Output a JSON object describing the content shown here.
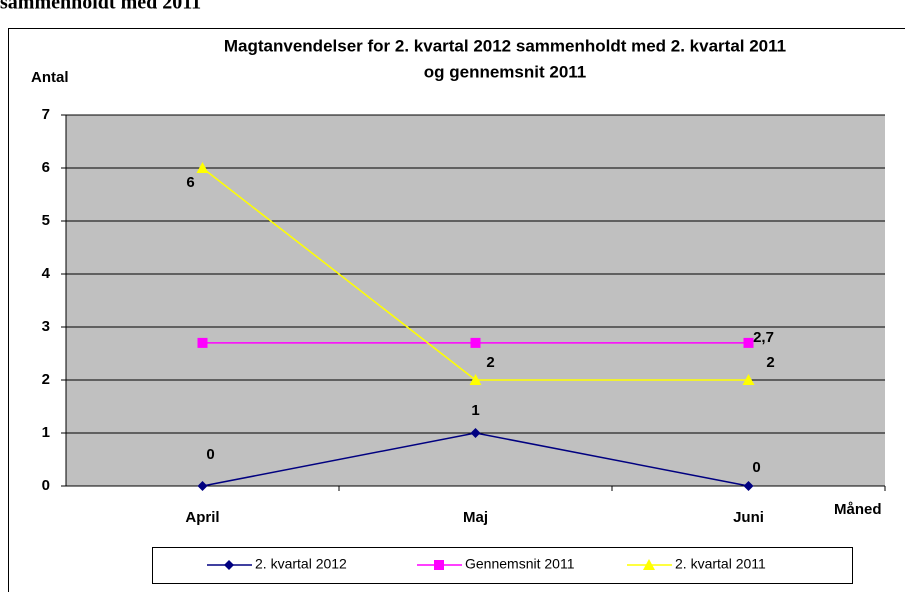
{
  "page_heading": "sammenholdt med 2011",
  "chart_data": {
    "type": "line",
    "title": [
      "Magtanvendelser for 2. kvartal 2012 sammenholdt med 2. kvartal 2011",
      "og gennemsnit 2011"
    ],
    "y_label": "Antal",
    "x_label": "Måned",
    "categories": [
      "April",
      "Maj",
      "Juni"
    ],
    "ylim": [
      0,
      7
    ],
    "yticks": [
      0,
      1,
      2,
      3,
      4,
      5,
      6,
      7
    ],
    "grid": true,
    "legend": "bottom",
    "series": [
      {
        "name": "2. kvartal 2012",
        "color": "#000080",
        "marker": "diamond",
        "values": [
          0,
          1,
          0
        ],
        "value_labels": [
          "0",
          "1",
          "0"
        ]
      },
      {
        "name": "Gennemsnit 2011",
        "color": "#ff00ff",
        "marker": "square",
        "values": [
          2.7,
          2.7,
          2.7
        ],
        "value_labels": [
          null,
          null,
          "2,7"
        ]
      },
      {
        "name": "2. kvartal 2011",
        "color": "#ffff00",
        "marker": "triangle",
        "values": [
          6,
          2,
          2
        ],
        "value_labels": [
          "6",
          "2",
          "2"
        ]
      }
    ]
  }
}
